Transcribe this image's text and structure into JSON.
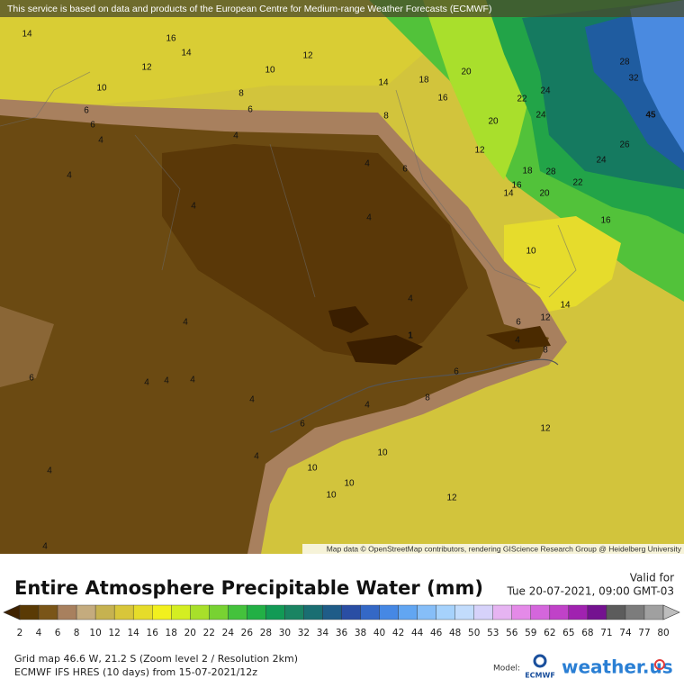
{
  "banner": "This service is based on data and products of the European Centre for Medium-range Weather Forecasts (ECMWF)",
  "map": {
    "attribution": "Map data © OpenStreetMap contributors, rendering GIScience Research Group @ Heidelberg University",
    "contour_labels": [
      "14",
      "16",
      "14",
      "12",
      "12",
      "10",
      "10",
      "8",
      "6",
      "6",
      "6",
      "8",
      "4",
      "4",
      "14",
      "18",
      "20",
      "16",
      "20",
      "22",
      "24",
      "24",
      "28",
      "32",
      "45",
      "26",
      "24",
      "22",
      "18",
      "28",
      "20",
      "16",
      "14",
      "12",
      "16",
      "10",
      "14",
      "12",
      "6",
      "4",
      "8",
      "4",
      "6",
      "4",
      "4",
      "4",
      "4",
      "4",
      "1",
      "6",
      "4",
      "4",
      "6",
      "8",
      "4",
      "4",
      "6",
      "12",
      "10",
      "4",
      "10",
      "10",
      "10",
      "12",
      "4",
      "4",
      "4"
    ]
  },
  "legend": {
    "title": "Entire Atmosphere Precipitable Water (mm)",
    "valid_label": "Valid for",
    "valid_time": "Tue 20-07-2021, 09:00 GMT-03",
    "ticks": [
      2,
      4,
      6,
      8,
      10,
      12,
      14,
      16,
      18,
      20,
      22,
      24,
      26,
      28,
      30,
      32,
      34,
      36,
      38,
      40,
      42,
      44,
      46,
      48,
      50,
      53,
      56,
      59,
      62,
      65,
      68,
      71,
      74,
      77,
      80
    ],
    "colors": [
      "#3f2200",
      "#5a3a05",
      "#7a5518",
      "#a8805e",
      "#c4ab7e",
      "#c6b250",
      "#d8c63a",
      "#e6dc2a",
      "#f2f01e",
      "#d4ee22",
      "#a8e02a",
      "#78d232",
      "#44c23c",
      "#22b045",
      "#129a55",
      "#1a8462",
      "#1a6e72",
      "#1f5c88",
      "#2a4ea4",
      "#3468c6",
      "#4688e4",
      "#62a6f2",
      "#86bef8",
      "#a6d2fc",
      "#c2dcfc",
      "#d6d2fa",
      "#e6b4f2",
      "#e48ae8",
      "#d466dc",
      "#c042c8",
      "#a022b0",
      "#741290",
      "#5c5c5c",
      "#7c7c7c",
      "#a0a0a0",
      "#bdbdbd"
    ],
    "grid_info": "Grid map 46.6 W, 21.2 S (Zoom level 2 / Resolution 2km)",
    "model_info": "ECMWF IFS HRES (10 days) from 15-07-2021/12z",
    "model_label": "Model:",
    "model_logo": "ECMWF",
    "brand": "weather.us"
  }
}
